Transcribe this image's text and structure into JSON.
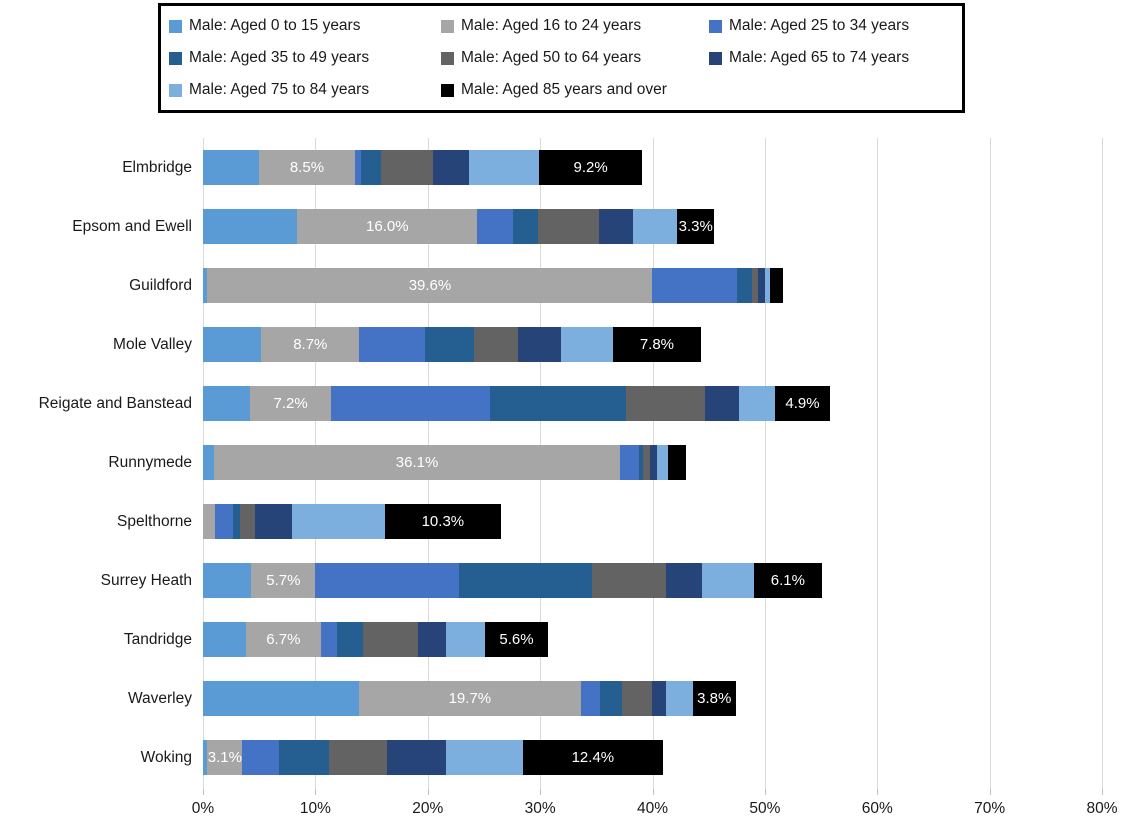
{
  "chart_data": {
    "type": "bar",
    "orientation": "horizontal",
    "stacked": true,
    "title": "",
    "xlabel": "",
    "ylabel": "",
    "xlim": [
      0,
      80
    ],
    "x_tick_labels": [
      "0%",
      "10%",
      "20%",
      "30%",
      "40%",
      "50%",
      "60%",
      "70%",
      "80%"
    ],
    "x_tick_values": [
      0,
      10,
      20,
      30,
      40,
      50,
      60,
      70,
      80
    ],
    "grid": "vertical",
    "gridline_color": "#d9d9d9",
    "legend_position": "top",
    "categories": [
      "Elmbridge",
      "Epsom and Ewell",
      "Guildford",
      "Mole Valley",
      "Reigate and Banstead",
      "Runnymede",
      "Spelthorne",
      "Surrey Heath",
      "Tandridge",
      "Waverley",
      "Woking"
    ],
    "series": [
      {
        "name": "Male: Aged 0 to 15 years",
        "color": "#5B9BD5",
        "values": [
          5.0,
          8.4,
          0.4,
          5.2,
          4.2,
          1.0,
          0.0,
          4.3,
          3.8,
          13.9,
          0.4
        ]
      },
      {
        "name": "Male: Aged 16 to 24 years",
        "color": "#A6A6A6",
        "values": [
          8.5,
          16.0,
          39.6,
          8.7,
          7.2,
          36.1,
          1.1,
          5.7,
          6.7,
          19.7,
          3.1
        ]
      },
      {
        "name": "Male: Aged 25 to 34 years",
        "color": "#4472C4",
        "values": [
          0.6,
          3.2,
          7.5,
          5.9,
          14.1,
          1.7,
          1.6,
          12.8,
          1.4,
          1.7,
          3.3
        ]
      },
      {
        "name": "Male: Aged 35 to 49 years",
        "color": "#255E91",
        "values": [
          1.7,
          2.2,
          1.4,
          4.3,
          12.1,
          0.4,
          0.6,
          11.8,
          2.3,
          2.0,
          4.4
        ]
      },
      {
        "name": "Male: Aged 50 to 64 years",
        "color": "#636363",
        "values": [
          4.7,
          5.4,
          0.5,
          3.9,
          7.1,
          0.6,
          1.3,
          6.6,
          4.9,
          2.7,
          5.2
        ]
      },
      {
        "name": "Male: Aged 65 to 74 years",
        "color": "#264478",
        "values": [
          3.2,
          3.1,
          0.6,
          3.9,
          3.0,
          0.6,
          3.3,
          3.2,
          2.5,
          1.2,
          5.2
        ]
      },
      {
        "name": "Male: Aged 75 to 84 years",
        "color": "#7CAFDD",
        "values": [
          6.2,
          3.9,
          0.5,
          4.6,
          3.2,
          1.0,
          8.3,
          4.6,
          3.5,
          2.4,
          6.9
        ]
      },
      {
        "name": "Male: Aged 85 years and over",
        "color": "#000000",
        "values": [
          9.2,
          3.3,
          1.1,
          7.8,
          4.9,
          1.6,
          10.3,
          6.1,
          5.6,
          3.8,
          12.4
        ]
      }
    ],
    "segment_labels": {
      "1": [
        "8.5%",
        "16.0%",
        "39.6%",
        "8.7%",
        "7.2%",
        "36.1%",
        null,
        "5.7%",
        "6.7%",
        "19.7%",
        "3.1%"
      ],
      "7": [
        "9.2%",
        "3.3%",
        null,
        "7.8%",
        "4.9%",
        null,
        "10.3%",
        "6.1%",
        "5.6%",
        "3.8%",
        "12.4%"
      ]
    },
    "label_text_color": "#ffffff"
  }
}
